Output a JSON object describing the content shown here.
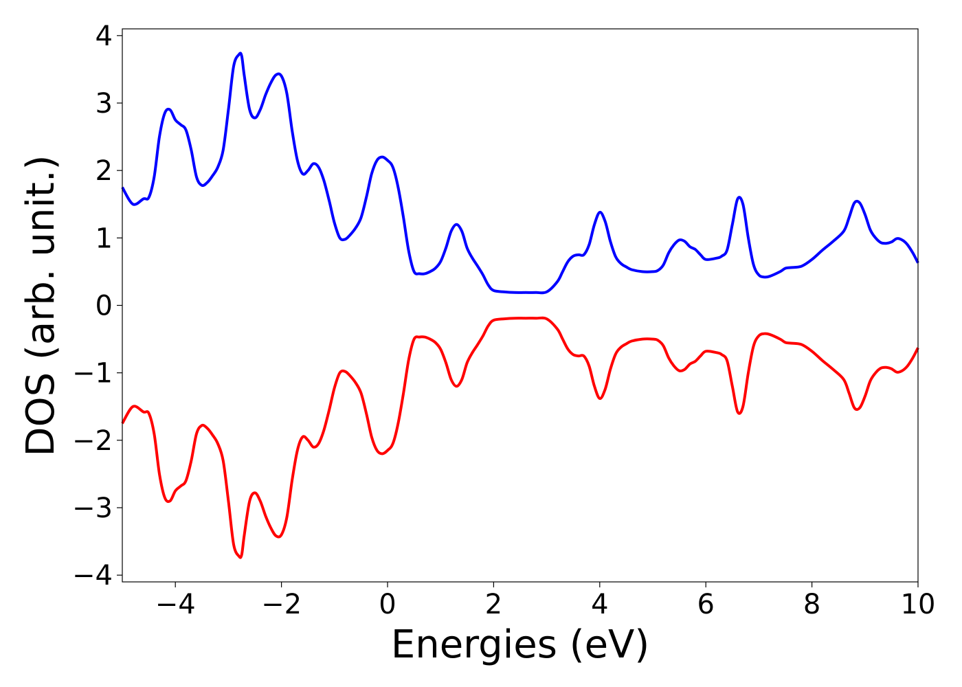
{
  "chart_data": {
    "type": "line",
    "title": "",
    "xlabel": "Energies (eV)",
    "ylabel": "DOS (arb. unit.)",
    "xlim": [
      -5,
      10
    ],
    "ylim": [
      -4.1,
      4.1
    ],
    "xticks": [
      -4,
      -2,
      0,
      2,
      4,
      6,
      8,
      10
    ],
    "yticks": [
      -4,
      -3,
      -2,
      -1,
      0,
      1,
      2,
      3,
      4
    ],
    "xtick_labels": [
      "−4",
      "−2",
      "0",
      "2",
      "4",
      "6",
      "8",
      "10"
    ],
    "ytick_labels": [
      "−4",
      "−3",
      "−2",
      "−1",
      "0",
      "1",
      "2",
      "3",
      "4"
    ],
    "grid": false,
    "legend": "none",
    "series": [
      {
        "color": "#0000ff",
        "x": [
          -5.0,
          -4.8,
          -4.6,
          -4.5,
          -4.4,
          -4.3,
          -4.2,
          -4.1,
          -4.0,
          -3.9,
          -3.8,
          -3.7,
          -3.6,
          -3.5,
          -3.4,
          -3.3,
          -3.2,
          -3.1,
          -3.0,
          -2.9,
          -2.8,
          -2.75,
          -2.7,
          -2.6,
          -2.5,
          -2.4,
          -2.3,
          -2.2,
          -2.1,
          -2.0,
          -1.9,
          -1.8,
          -1.7,
          -1.6,
          -1.5,
          -1.4,
          -1.3,
          -1.2,
          -1.1,
          -1.0,
          -0.9,
          -0.8,
          -0.7,
          -0.6,
          -0.5,
          -0.4,
          -0.3,
          -0.2,
          -0.1,
          0.0,
          0.1,
          0.2,
          0.3,
          0.4,
          0.5,
          0.6,
          0.7,
          0.8,
          0.9,
          1.0,
          1.1,
          1.2,
          1.3,
          1.4,
          1.5,
          1.6,
          1.7,
          1.8,
          1.9,
          2.0,
          2.2,
          2.4,
          2.6,
          2.8,
          3.0,
          3.2,
          3.3,
          3.4,
          3.5,
          3.6,
          3.7,
          3.8,
          3.9,
          4.0,
          4.1,
          4.2,
          4.3,
          4.4,
          4.5,
          4.6,
          4.8,
          5.0,
          5.1,
          5.2,
          5.3,
          5.4,
          5.5,
          5.6,
          5.7,
          5.8,
          5.9,
          6.0,
          6.2,
          6.3,
          6.4,
          6.5,
          6.6,
          6.7,
          6.8,
          6.9,
          7.0,
          7.1,
          7.2,
          7.4,
          7.5,
          7.6,
          7.8,
          8.0,
          8.2,
          8.4,
          8.6,
          8.7,
          8.8,
          8.9,
          9.0,
          9.1,
          9.2,
          9.3,
          9.4,
          9.5,
          9.6,
          9.7,
          9.8,
          9.9,
          10.0
        ],
        "y": [
          1.75,
          1.5,
          1.58,
          1.6,
          1.9,
          2.5,
          2.85,
          2.9,
          2.75,
          2.68,
          2.6,
          2.3,
          1.9,
          1.78,
          1.82,
          1.92,
          2.05,
          2.3,
          2.9,
          3.55,
          3.72,
          3.7,
          3.4,
          2.9,
          2.78,
          2.9,
          3.12,
          3.3,
          3.42,
          3.4,
          3.15,
          2.6,
          2.15,
          1.95,
          2.0,
          2.1,
          2.05,
          1.85,
          1.55,
          1.22,
          1.0,
          0.98,
          1.05,
          1.15,
          1.3,
          1.6,
          1.95,
          2.15,
          2.2,
          2.15,
          2.05,
          1.75,
          1.3,
          0.8,
          0.5,
          0.47,
          0.47,
          0.5,
          0.55,
          0.65,
          0.85,
          1.1,
          1.2,
          1.1,
          0.85,
          0.7,
          0.58,
          0.45,
          0.3,
          0.22,
          0.2,
          0.19,
          0.19,
          0.19,
          0.2,
          0.35,
          0.5,
          0.65,
          0.73,
          0.75,
          0.75,
          0.9,
          1.2,
          1.38,
          1.25,
          0.95,
          0.72,
          0.62,
          0.57,
          0.53,
          0.5,
          0.5,
          0.52,
          0.6,
          0.78,
          0.9,
          0.97,
          0.95,
          0.87,
          0.83,
          0.75,
          0.68,
          0.7,
          0.73,
          0.82,
          1.2,
          1.58,
          1.5,
          1.0,
          0.6,
          0.45,
          0.42,
          0.43,
          0.5,
          0.55,
          0.56,
          0.58,
          0.68,
          0.82,
          0.95,
          1.1,
          1.3,
          1.52,
          1.52,
          1.35,
          1.12,
          1.0,
          0.93,
          0.92,
          0.94,
          0.99,
          0.97,
          0.9,
          0.78,
          0.63
        ]
      },
      {
        "color": "#ff0000",
        "x": [
          -5.0,
          -4.8,
          -4.6,
          -4.5,
          -4.4,
          -4.3,
          -4.2,
          -4.1,
          -4.0,
          -3.9,
          -3.8,
          -3.7,
          -3.6,
          -3.5,
          -3.4,
          -3.3,
          -3.2,
          -3.1,
          -3.0,
          -2.9,
          -2.8,
          -2.75,
          -2.7,
          -2.6,
          -2.5,
          -2.4,
          -2.3,
          -2.2,
          -2.1,
          -2.0,
          -1.9,
          -1.8,
          -1.7,
          -1.6,
          -1.5,
          -1.4,
          -1.3,
          -1.2,
          -1.1,
          -1.0,
          -0.9,
          -0.8,
          -0.7,
          -0.6,
          -0.5,
          -0.4,
          -0.3,
          -0.2,
          -0.1,
          0.0,
          0.1,
          0.2,
          0.3,
          0.4,
          0.5,
          0.6,
          0.7,
          0.8,
          0.9,
          1.0,
          1.1,
          1.2,
          1.3,
          1.4,
          1.5,
          1.6,
          1.7,
          1.8,
          1.9,
          2.0,
          2.2,
          2.4,
          2.6,
          2.8,
          3.0,
          3.2,
          3.3,
          3.4,
          3.5,
          3.6,
          3.7,
          3.8,
          3.9,
          4.0,
          4.1,
          4.2,
          4.3,
          4.4,
          4.5,
          4.6,
          4.8,
          5.0,
          5.1,
          5.2,
          5.3,
          5.4,
          5.5,
          5.6,
          5.7,
          5.8,
          5.9,
          6.0,
          6.2,
          6.3,
          6.4,
          6.5,
          6.6,
          6.7,
          6.8,
          6.9,
          7.0,
          7.1,
          7.2,
          7.4,
          7.5,
          7.6,
          7.8,
          8.0,
          8.2,
          8.4,
          8.6,
          8.7,
          8.8,
          8.9,
          9.0,
          9.1,
          9.2,
          9.3,
          9.4,
          9.5,
          9.6,
          9.7,
          9.8,
          9.9,
          10.0
        ],
        "y": [
          -1.75,
          -1.5,
          -1.58,
          -1.6,
          -1.9,
          -2.5,
          -2.85,
          -2.9,
          -2.75,
          -2.68,
          -2.6,
          -2.3,
          -1.9,
          -1.78,
          -1.82,
          -1.92,
          -2.05,
          -2.3,
          -2.9,
          -3.55,
          -3.72,
          -3.7,
          -3.4,
          -2.9,
          -2.78,
          -2.9,
          -3.12,
          -3.3,
          -3.42,
          -3.4,
          -3.15,
          -2.6,
          -2.15,
          -1.95,
          -2.0,
          -2.1,
          -2.05,
          -1.85,
          -1.55,
          -1.22,
          -1.0,
          -0.98,
          -1.05,
          -1.15,
          -1.3,
          -1.6,
          -1.95,
          -2.15,
          -2.2,
          -2.15,
          -2.05,
          -1.75,
          -1.3,
          -0.8,
          -0.5,
          -0.47,
          -0.47,
          -0.5,
          -0.55,
          -0.65,
          -0.85,
          -1.1,
          -1.2,
          -1.1,
          -0.85,
          -0.7,
          -0.58,
          -0.45,
          -0.3,
          -0.22,
          -0.2,
          -0.19,
          -0.19,
          -0.19,
          -0.2,
          -0.35,
          -0.5,
          -0.65,
          -0.73,
          -0.75,
          -0.75,
          -0.9,
          -1.2,
          -1.38,
          -1.25,
          -0.95,
          -0.72,
          -0.62,
          -0.57,
          -0.53,
          -0.5,
          -0.5,
          -0.52,
          -0.6,
          -0.78,
          -0.9,
          -0.97,
          -0.95,
          -0.87,
          -0.83,
          -0.75,
          -0.68,
          -0.7,
          -0.73,
          -0.82,
          -1.2,
          -1.58,
          -1.5,
          -1.0,
          -0.6,
          -0.45,
          -0.42,
          -0.43,
          -0.5,
          -0.55,
          -0.56,
          -0.58,
          -0.68,
          -0.82,
          -0.95,
          -1.1,
          -1.3,
          -1.52,
          -1.52,
          -1.35,
          -1.12,
          -1.0,
          -0.93,
          -0.92,
          -0.94,
          -0.99,
          -0.97,
          -0.9,
          -0.78,
          -0.63
        ]
      }
    ]
  }
}
